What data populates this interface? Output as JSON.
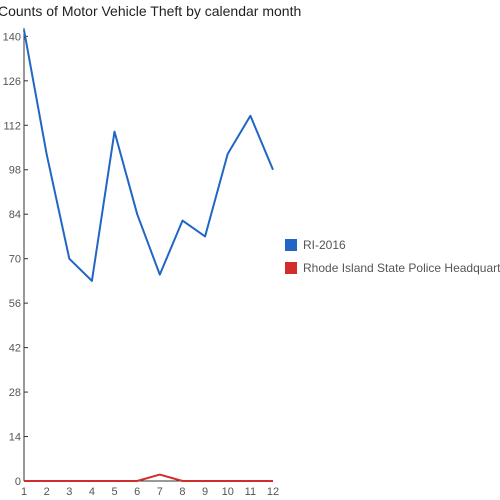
{
  "chart_data": {
    "type": "line",
    "title": "Counts of Motor Vehicle Theft by calendar month",
    "xlabel": "",
    "ylabel": "",
    "x": [
      1,
      2,
      3,
      4,
      5,
      6,
      7,
      8,
      9,
      10,
      11,
      12
    ],
    "ylim": [
      0,
      142
    ],
    "yticks": [
      0,
      14,
      28,
      42,
      56,
      70,
      84,
      98,
      112,
      126,
      140
    ],
    "grid": false,
    "legend_position": "right",
    "series": [
      {
        "name": "RI-2016",
        "color": "#2166c4",
        "values": [
          142,
          103,
          70,
          63,
          110,
          84,
          65,
          82,
          77,
          103,
          115,
          98
        ]
      },
      {
        "name": "Rhode Island State Police Headquarters",
        "color": "#d22d2d",
        "values": [
          0,
          0,
          0,
          0,
          0,
          0,
          2,
          0,
          0,
          0,
          0,
          0
        ]
      }
    ]
  }
}
